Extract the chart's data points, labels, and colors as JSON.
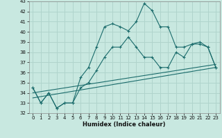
{
  "xlabel": "Humidex (Indice chaleur)",
  "background_color": "#c8e8e0",
  "grid_color": "#b0d4cc",
  "line_color": "#1a6b6b",
  "xlim": [
    -0.5,
    23.5
  ],
  "ylim": [
    32,
    43
  ],
  "xticks": [
    0,
    1,
    2,
    3,
    4,
    5,
    6,
    7,
    8,
    9,
    10,
    11,
    12,
    13,
    14,
    15,
    16,
    17,
    18,
    19,
    20,
    21,
    22,
    23
  ],
  "yticks": [
    32,
    33,
    34,
    35,
    36,
    37,
    38,
    39,
    40,
    41,
    42,
    43
  ],
  "series1_x": [
    0,
    1,
    2,
    3,
    4,
    5,
    6,
    7,
    8,
    9,
    10,
    11,
    12,
    13,
    14,
    15,
    16,
    17,
    18,
    19,
    20,
    21,
    22,
    23
  ],
  "series1_y": [
    34.5,
    33.0,
    34.0,
    32.5,
    33.0,
    33.0,
    35.5,
    36.5,
    38.5,
    40.5,
    40.8,
    40.5,
    40.1,
    41.0,
    42.8,
    42.1,
    40.5,
    40.5,
    38.5,
    38.5,
    38.8,
    39.0,
    38.5,
    36.5
  ],
  "series2_x": [
    0,
    1,
    2,
    3,
    4,
    5,
    6,
    7,
    8,
    9,
    10,
    11,
    12,
    13,
    14,
    15,
    16,
    17,
    18,
    19,
    20,
    21,
    22,
    23
  ],
  "series2_y": [
    34.5,
    33.0,
    34.0,
    32.5,
    33.0,
    33.0,
    34.5,
    35.0,
    36.2,
    37.5,
    38.5,
    38.5,
    39.5,
    38.5,
    37.5,
    37.5,
    36.5,
    36.5,
    38.0,
    37.5,
    38.8,
    38.8,
    38.5,
    36.5
  ],
  "series3_x": [
    0,
    23
  ],
  "series3_y": [
    33.5,
    36.5
  ],
  "series4_x": [
    0,
    23
  ],
  "series4_y": [
    34.0,
    36.8
  ]
}
